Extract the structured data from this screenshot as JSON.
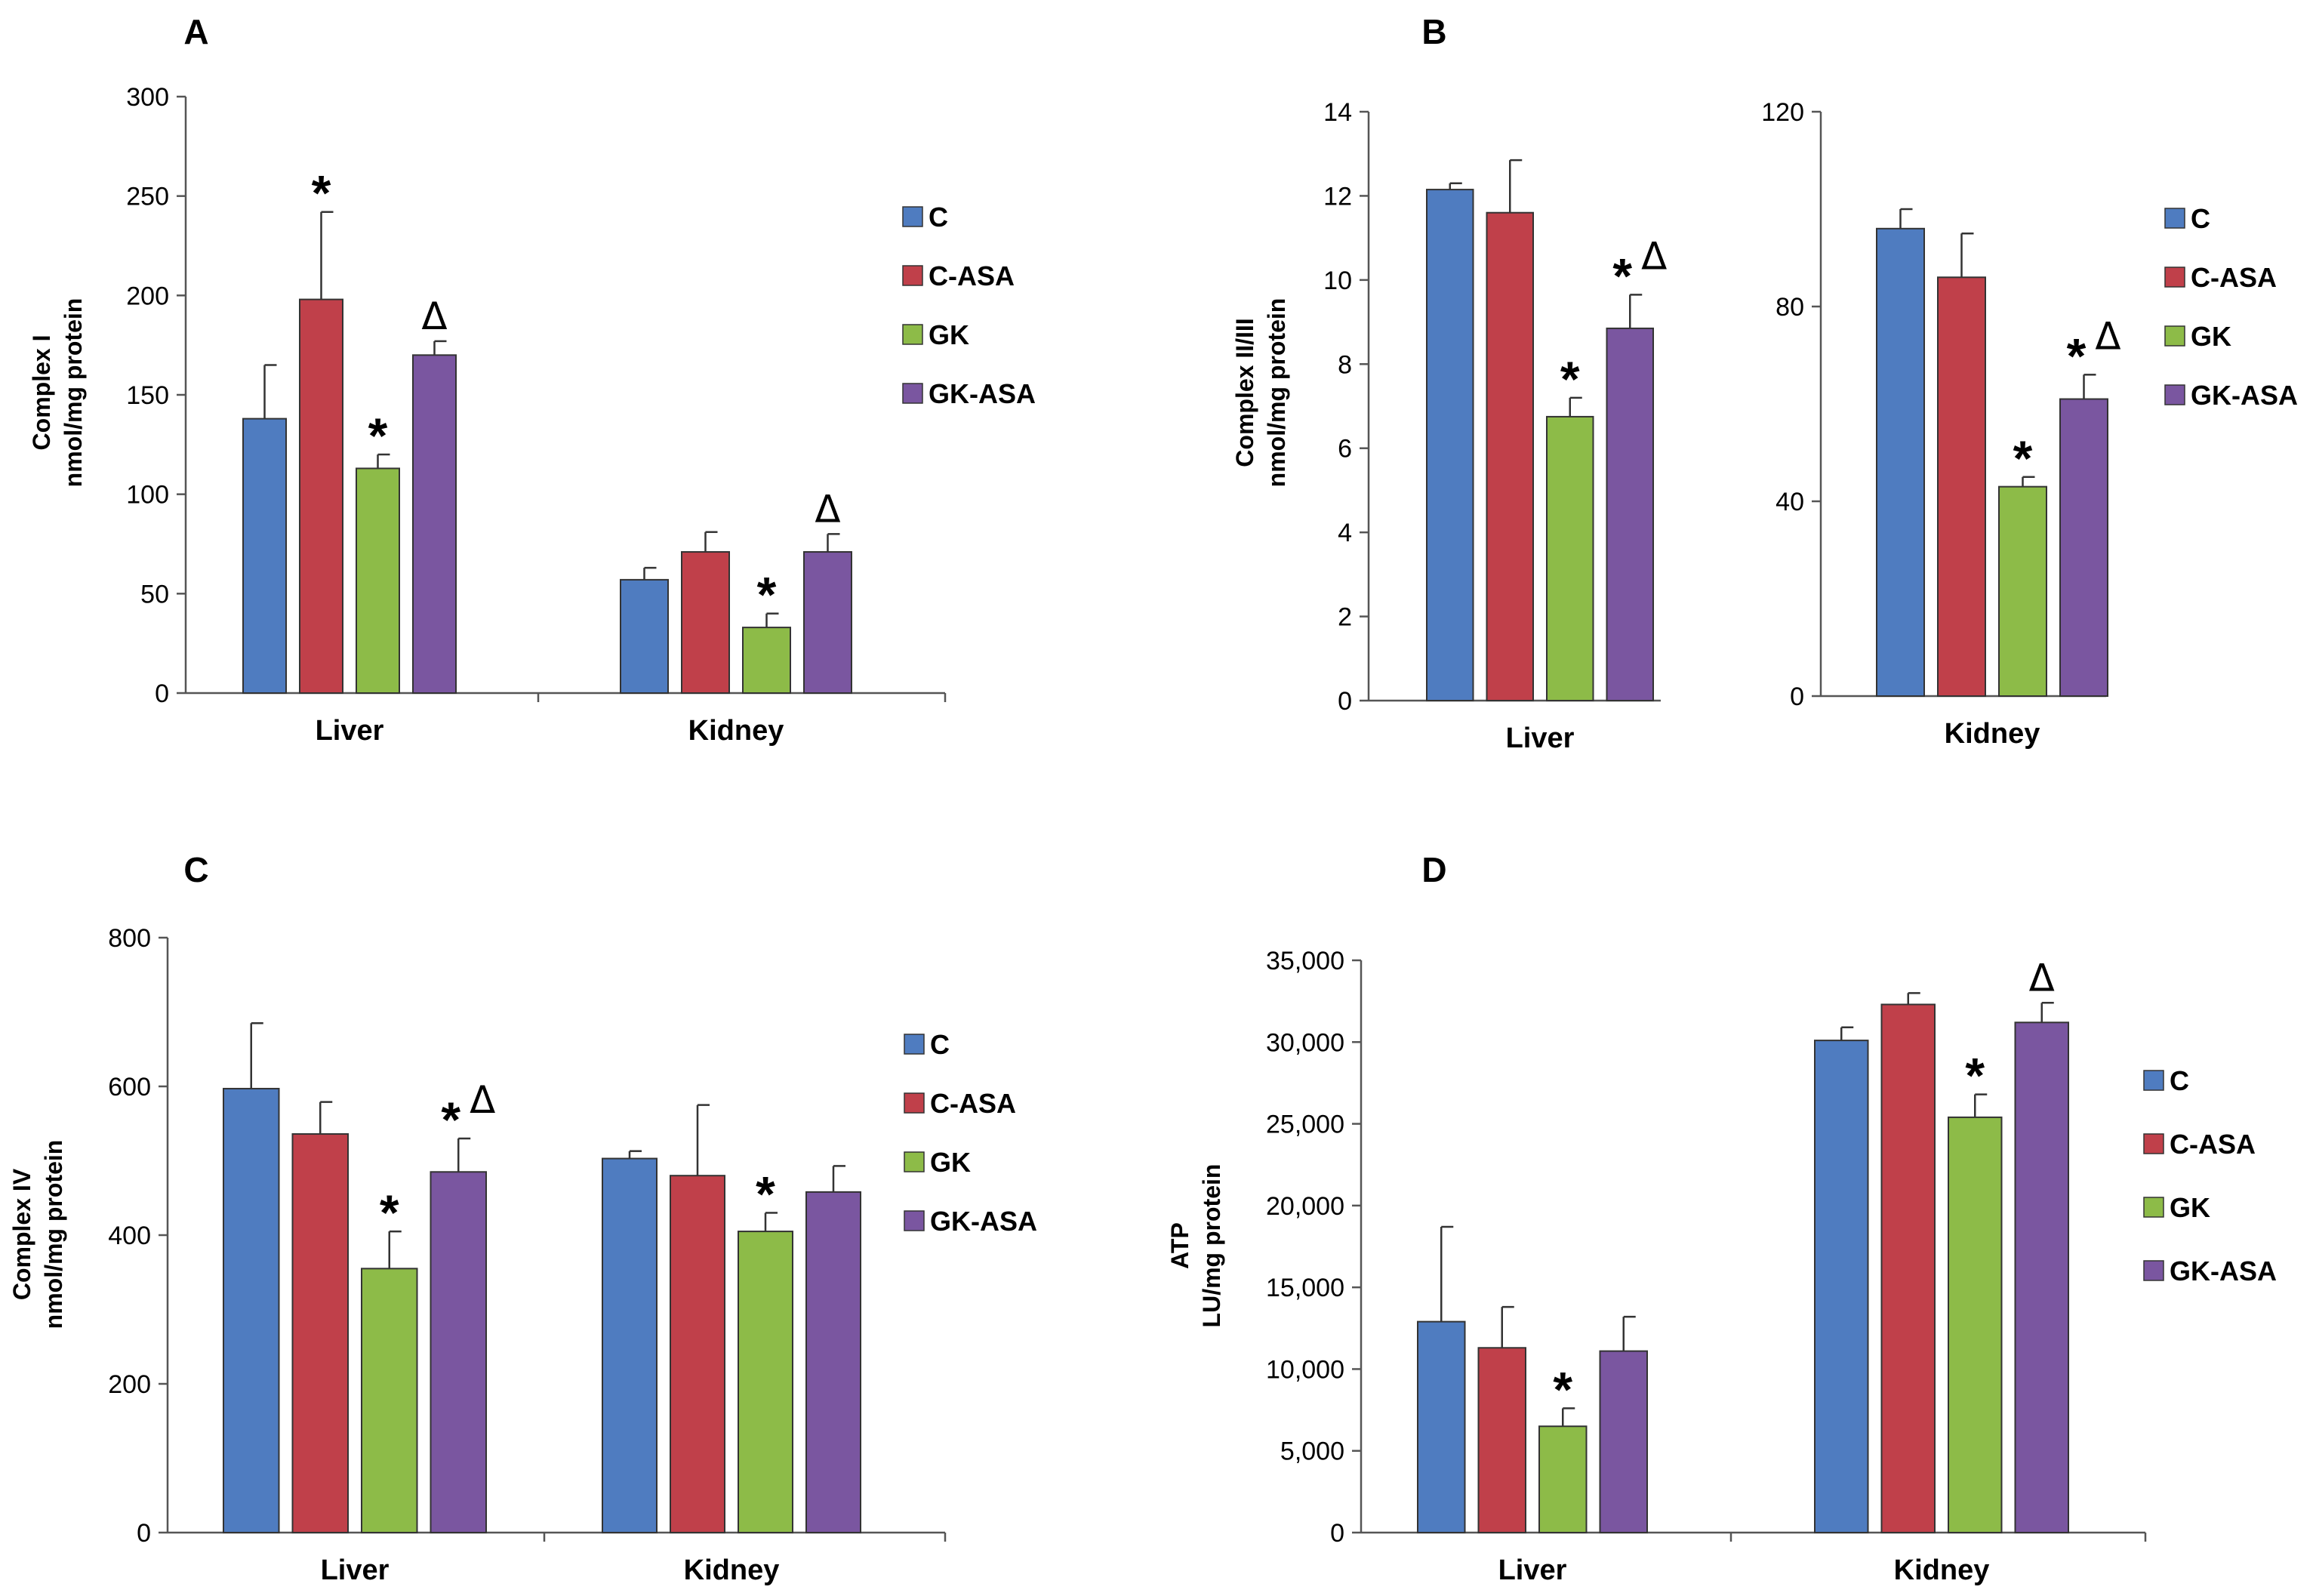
{
  "colors": {
    "C": "#4f7cc0",
    "C-ASA": "#c0404a",
    "GK": "#8dbb48",
    "GK-ASA": "#7a56a0",
    "axis": "#555555"
  },
  "marks": {
    "star": "*",
    "delta": "Δ"
  },
  "chart_data": [
    {
      "panel": "A",
      "type": "bar",
      "ylabel": [
        "Complex I",
        "nmol/mg protein"
      ],
      "ylim": [
        0,
        300
      ],
      "yticks": [
        0,
        50,
        100,
        150,
        200,
        250,
        300
      ],
      "categories": [
        "Liver",
        "Kidney"
      ],
      "legend": [
        "C",
        "C-ASA",
        "GK",
        "GK-ASA"
      ],
      "series": [
        {
          "name": "C",
          "values": [
            138,
            57
          ],
          "errors": [
            27,
            6
          ],
          "marks": [
            [],
            []
          ]
        },
        {
          "name": "C-ASA",
          "values": [
            198,
            71
          ],
          "errors": [
            44,
            10
          ],
          "marks": [
            [
              "*"
            ],
            []
          ]
        },
        {
          "name": "GK",
          "values": [
            113,
            33
          ],
          "errors": [
            7,
            7
          ],
          "marks": [
            [
              "*"
            ],
            [
              "*"
            ]
          ]
        },
        {
          "name": "GK-ASA",
          "values": [
            170,
            71
          ],
          "errors": [
            7,
            9
          ],
          "marks": [
            [
              "Δ"
            ],
            [
              "Δ"
            ]
          ]
        }
      ]
    },
    {
      "panel": "B",
      "type": "bar",
      "ylabel": [
        "Complex II/III",
        "nmol/mg protein"
      ],
      "legend": [
        "C",
        "C-ASA",
        "GK",
        "GK-ASA"
      ],
      "subplots": [
        {
          "category": "Liver",
          "ylim": [
            0,
            14
          ],
          "yticks": [
            0,
            2,
            4,
            6,
            8,
            10,
            12,
            14
          ],
          "series": [
            {
              "name": "C",
              "values": [
                12.15
              ],
              "errors": [
                0.15
              ],
              "marks": [
                []
              ]
            },
            {
              "name": "C-ASA",
              "values": [
                11.6
              ],
              "errors": [
                1.25
              ],
              "marks": [
                []
              ]
            },
            {
              "name": "GK",
              "values": [
                6.75
              ],
              "errors": [
                0.45
              ],
              "marks": [
                [
                  "*"
                ]
              ]
            },
            {
              "name": "GK-ASA",
              "values": [
                8.85
              ],
              "errors": [
                0.8
              ],
              "marks": [
                [
                  "*",
                  "Δ"
                ]
              ]
            }
          ]
        },
        {
          "category": "Kidney",
          "ylim": [
            0,
            120
          ],
          "yticks": [
            0,
            40,
            80,
            120
          ],
          "series": [
            {
              "name": "C",
              "values": [
                96
              ],
              "errors": [
                4
              ],
              "marks": [
                []
              ]
            },
            {
              "name": "C-ASA",
              "values": [
                86
              ],
              "errors": [
                9
              ],
              "marks": [
                []
              ]
            },
            {
              "name": "GK",
              "values": [
                43
              ],
              "errors": [
                2
              ],
              "marks": [
                [
                  "*"
                ]
              ]
            },
            {
              "name": "GK-ASA",
              "values": [
                61
              ],
              "errors": [
                5
              ],
              "marks": [
                [
                  "*",
                  "Δ"
                ]
              ]
            }
          ]
        }
      ]
    },
    {
      "panel": "C",
      "type": "bar",
      "ylabel": [
        "Complex IV",
        "nmol/mg protein"
      ],
      "ylim": [
        0,
        800
      ],
      "yticks": [
        0,
        200,
        400,
        600,
        800
      ],
      "categories": [
        "Liver",
        "Kidney"
      ],
      "legend": [
        "C",
        "C-ASA",
        "GK",
        "GK-ASA"
      ],
      "series": [
        {
          "name": "C",
          "values": [
            597,
            503
          ],
          "errors": [
            88,
            10
          ],
          "marks": [
            [],
            []
          ]
        },
        {
          "name": "C-ASA",
          "values": [
            536,
            480
          ],
          "errors": [
            43,
            95
          ],
          "marks": [
            [],
            []
          ]
        },
        {
          "name": "GK",
          "values": [
            355,
            405
          ],
          "errors": [
            50,
            25
          ],
          "marks": [
            [
              "*"
            ],
            [
              "*"
            ]
          ]
        },
        {
          "name": "GK-ASA",
          "values": [
            485,
            458
          ],
          "errors": [
            45,
            35
          ],
          "marks": [
            [
              "*",
              "Δ"
            ],
            []
          ]
        }
      ]
    },
    {
      "panel": "D",
      "type": "bar",
      "ylabel": [
        "ATP",
        "LU/mg protein"
      ],
      "ylim": [
        0,
        35000
      ],
      "yticks": [
        0,
        5000,
        10000,
        15000,
        20000,
        25000,
        30000,
        35000
      ],
      "ytick_labels": [
        "0",
        "5,000",
        "10,000",
        "15,000",
        "20,000",
        "25,000",
        "30,000",
        "35,000"
      ],
      "categories": [
        "Liver",
        "Kidney"
      ],
      "legend": [
        "C",
        "C-ASA",
        "GK",
        "GK-ASA"
      ],
      "series": [
        {
          "name": "C",
          "values": [
            12900,
            30100
          ],
          "errors": [
            5800,
            800
          ],
          "marks": [
            [],
            []
          ]
        },
        {
          "name": "C-ASA",
          "values": [
            11300,
            32300
          ],
          "errors": [
            2500,
            700
          ],
          "marks": [
            [],
            []
          ]
        },
        {
          "name": "GK",
          "values": [
            6500,
            25400
          ],
          "errors": [
            1100,
            1400
          ],
          "marks": [
            [
              "*"
            ],
            [
              "*"
            ]
          ]
        },
        {
          "name": "GK-ASA",
          "values": [
            11100,
            31200
          ],
          "errors": [
            2100,
            1200
          ],
          "marks": [
            [],
            [
              "Δ"
            ]
          ]
        }
      ]
    }
  ]
}
